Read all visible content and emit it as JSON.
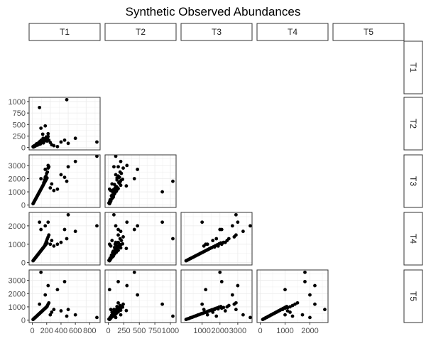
{
  "chart_data": {
    "type": "scatter",
    "title": "Synthetic Observed Abundances",
    "variables": [
      "T1",
      "T2",
      "T3",
      "T4",
      "T5"
    ],
    "ranges": {
      "T1": [
        -45,
        945
      ],
      "T2": [
        -52,
        1092
      ],
      "T3": [
        -181,
        3801
      ],
      "T4": [
        -130,
        2730
      ],
      "T5": [
        -180,
        3780
      ]
    },
    "ticks": {
      "T1": [
        0,
        250,
        500,
        750
      ],
      "T2": [
        0,
        250,
        500,
        750,
        1000
      ],
      "T3": [
        0,
        1000,
        2000,
        3000
      ],
      "T4": [
        0,
        1000,
        2000
      ],
      "T5": [
        0,
        1000,
        2000,
        3000
      ]
    },
    "bottom_tick_labels": [
      [
        "0",
        "200",
        "400",
        "600",
        "800"
      ],
      [
        "0",
        "250",
        "500",
        "750",
        "1000"
      ],
      [
        "1000",
        "2000",
        "3000"
      ],
      [
        "0",
        "1000",
        "2000"
      ]
    ],
    "left_tick_labels": {
      "T2": [
        "0",
        "250",
        "500",
        "750",
        "1000"
      ],
      "T3": [
        "0",
        "1000",
        "2000",
        "3000"
      ],
      "T4": [
        "0",
        "1000",
        "2000"
      ],
      "T5": [
        "0",
        "1000",
        "2000",
        "3000"
      ]
    },
    "bottom_ticks": [
      [
        0,
        200,
        400,
        600,
        800
      ],
      [
        0,
        250,
        500,
        750,
        1000
      ],
      [
        1000,
        2000,
        3000
      ],
      [
        0,
        1000,
        2000
      ]
    ],
    "samples": {
      "T1": [
        10,
        20,
        30,
        40,
        50,
        60,
        70,
        80,
        90,
        100,
        110,
        120,
        130,
        140,
        150,
        160,
        170,
        180,
        190,
        200,
        210,
        220,
        230,
        250,
        270,
        300,
        350,
        400,
        450,
        480,
        500,
        600,
        900,
        15,
        35,
        55,
        75,
        95,
        115,
        135,
        155,
        175,
        195,
        25,
        45,
        65,
        85,
        105,
        125,
        145,
        165,
        185,
        205,
        100,
        180,
        220,
        120
      ],
      "T2": [
        20,
        30,
        40,
        30,
        60,
        80,
        50,
        90,
        100,
        70,
        120,
        150,
        110,
        130,
        200,
        170,
        140,
        180,
        160,
        210,
        190,
        240,
        160,
        110,
        60,
        40,
        20,
        120,
        160,
        1040,
        90,
        200,
        120,
        10,
        40,
        70,
        60,
        110,
        80,
        140,
        100,
        190,
        230,
        20,
        50,
        80,
        100,
        130,
        160,
        290,
        180,
        200,
        140,
        870,
        470,
        300,
        420
      ],
      "T3": [
        100,
        200,
        300,
        400,
        500,
        600,
        700,
        800,
        900,
        1000,
        1100,
        1200,
        1300,
        1400,
        1500,
        1700,
        1900,
        2100,
        2200,
        2400,
        2500,
        2800,
        2900,
        1300,
        1600,
        1100,
        1200,
        2300,
        2100,
        1800,
        2900,
        3300,
        3700,
        150,
        350,
        550,
        750,
        950,
        1150,
        1350,
        1550,
        1750,
        1950,
        250,
        450,
        650,
        850,
        1050,
        1250,
        1450,
        1650,
        1850,
        2050,
        1000,
        2700,
        3000,
        2000
      ],
      "T4": [
        100,
        150,
        200,
        250,
        300,
        350,
        400,
        450,
        500,
        550,
        600,
        650,
        700,
        750,
        800,
        850,
        900,
        1000,
        1100,
        1200,
        1300,
        1400,
        1500,
        1000,
        1200,
        900,
        1000,
        1100,
        1800,
        1300,
        2600,
        1700,
        2000,
        120,
        220,
        320,
        420,
        520,
        620,
        720,
        820,
        920,
        1020,
        170,
        270,
        370,
        470,
        570,
        670,
        770,
        870,
        970,
        1070,
        2200,
        2000,
        2200,
        1800
      ],
      "T5": [
        50,
        100,
        150,
        200,
        250,
        300,
        350,
        400,
        450,
        500,
        550,
        600,
        650,
        700,
        750,
        800,
        850,
        900,
        950,
        1000,
        1100,
        1200,
        1300,
        400,
        600,
        800,
        2300,
        700,
        2900,
        300,
        800,
        400,
        200,
        80,
        180,
        280,
        380,
        480,
        580,
        680,
        780,
        880,
        980,
        120,
        220,
        320,
        420,
        520,
        620,
        720,
        820,
        920,
        1020,
        1200,
        1900,
        2600,
        3600
      ]
    }
  }
}
